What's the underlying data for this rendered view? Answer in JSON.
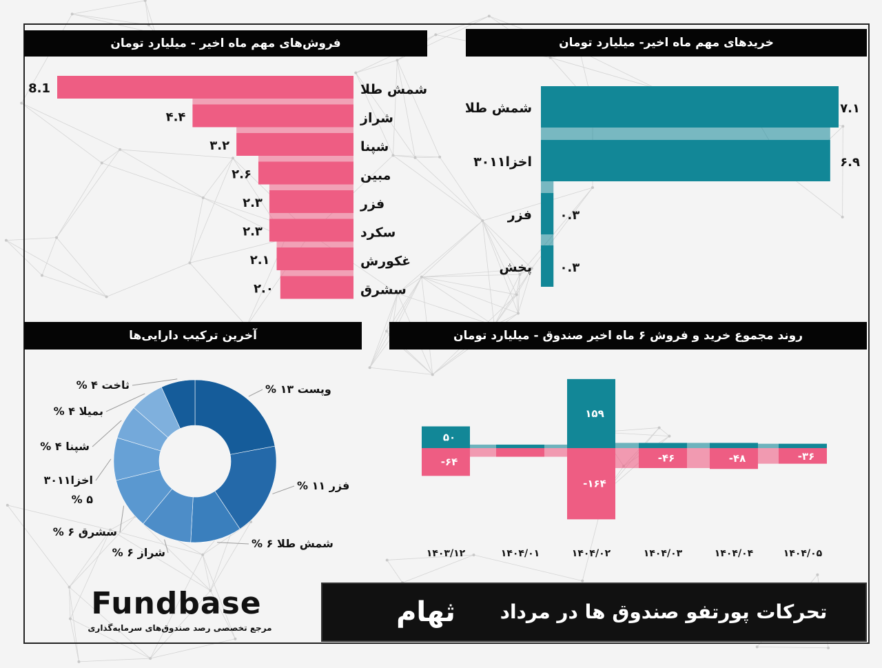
{
  "logo": {
    "word": "Fundbase",
    "tagline": "مرجع تخصصی رصد صندوق‌های سرمایه‌گذاری"
  },
  "footer": {
    "title": "تحرکات پورتفو صندوق ها در مرداد",
    "fund": "ثهام"
  },
  "colors": {
    "sell": "#ee5d83",
    "buy": "#128797",
    "title_bg": "#050505",
    "donut": [
      "#155c9a",
      "#2469a9",
      "#3a7fbd",
      "#4d8dc8",
      "#5a98d0",
      "#67a1d6",
      "#74a9da",
      "#7fb0dd"
    ]
  },
  "chart_data": [
    {
      "id": "sales",
      "type": "bar",
      "title": "فروش‌های مهم ماه اخیر - میلیارد تومان",
      "categories": [
        "شمش طلا",
        "شراز",
        "شپنا",
        "مبین",
        "فزر",
        "سکرد",
        "غکورش",
        "سشرق"
      ],
      "values": [
        8.1,
        4.4,
        3.2,
        2.6,
        2.3,
        2.3,
        2.1,
        2.0
      ],
      "value_labels": [
        "8.1",
        "۴.۴",
        "۳.۲",
        "۲.۶",
        "۲.۳",
        "۲.۳",
        "۲.۱",
        "۲.۰"
      ]
    },
    {
      "id": "purchases",
      "type": "bar",
      "title": "خریدهای مهم ماه اخیر- میلیارد تومان",
      "categories": [
        "شمش طلا",
        "اخزا۳۰۱۱",
        "فزر",
        "پخش"
      ],
      "values": [
        7.1,
        6.9,
        0.3,
        0.3
      ],
      "value_labels": [
        "۷.۱",
        "۶.۹",
        "۰.۳",
        "۰.۳"
      ]
    },
    {
      "id": "composition",
      "type": "pie",
      "title": "آخرین ترکیب دارایی‌ها",
      "slices": [
        {
          "label": "% ۱۳ وپست",
          "value": 13
        },
        {
          "label": "% ۱۱ فزر",
          "value": 11
        },
        {
          "label": "% ۶ شمش طلا",
          "value": 6
        },
        {
          "label": "% ۶ شراز",
          "value": 6
        },
        {
          "label": "% ۶ سشرق",
          "value": 6
        },
        {
          "label": "اخزا۳۰۱۱",
          "label2": "% ۵",
          "value": 5
        },
        {
          "label": "% ۴ شپنا",
          "value": 4
        },
        {
          "label": "% ۴ بمیلا",
          "value": 4
        },
        {
          "label": "% ۴ ثاخت",
          "value": 4
        }
      ]
    },
    {
      "id": "trend",
      "type": "bar",
      "title": "روند مجموع خرید و فروش ۶ ماه اخیر صندوق - میلیارد تومان",
      "categories": [
        "۱۴۰۳/۱۲",
        "۱۴۰۴/۰۱",
        "۱۴۰۴/۰۲",
        "۱۴۰۴/۰۳",
        "۱۴۰۴/۰۴",
        "۱۴۰۴/۰۵"
      ],
      "series": [
        {
          "name": "buy",
          "values": [
            50,
            8,
            159,
            12,
            12,
            10
          ],
          "labels": [
            "۵۰",
            "",
            "۱۵۹",
            "",
            "",
            ""
          ]
        },
        {
          "name": "sell",
          "values": [
            -64,
            -20,
            -164,
            -46,
            -48,
            -36
          ],
          "labels": [
            "-۶۴",
            "",
            "-۱۶۴",
            "-۴۶",
            "-۴۸",
            "-۳۶"
          ]
        }
      ]
    }
  ]
}
